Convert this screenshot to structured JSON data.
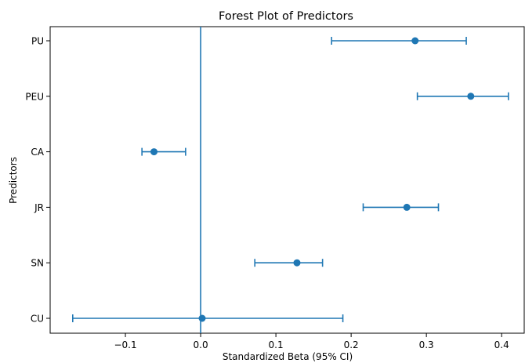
{
  "chart_data": {
    "type": "scatter",
    "subtype": "forest-plot",
    "title": "Forest Plot of Predictors",
    "xlabel": "Standardized Beta (95% CI)",
    "ylabel": "Predictors",
    "xlim": [
      -0.2,
      0.43
    ],
    "xticks": [
      -0.1,
      0.0,
      0.1,
      0.2,
      0.3,
      0.4
    ],
    "xtick_labels": [
      "−0.1",
      "0.0",
      "0.1",
      "0.2",
      "0.3",
      "0.4"
    ],
    "categories": [
      "PU",
      "PEU",
      "CA",
      "JR",
      "SN",
      "CU"
    ],
    "values": [
      0.285,
      0.359,
      -0.062,
      0.274,
      0.128,
      0.002
    ],
    "ci_low": [
      0.174,
      0.288,
      -0.078,
      0.216,
      0.072,
      -0.17
    ],
    "ci_high": [
      0.353,
      0.409,
      -0.02,
      0.316,
      0.162,
      0.189
    ],
    "reference_line_x": 0.0,
    "grid": false,
    "color": "#1f77b4"
  }
}
